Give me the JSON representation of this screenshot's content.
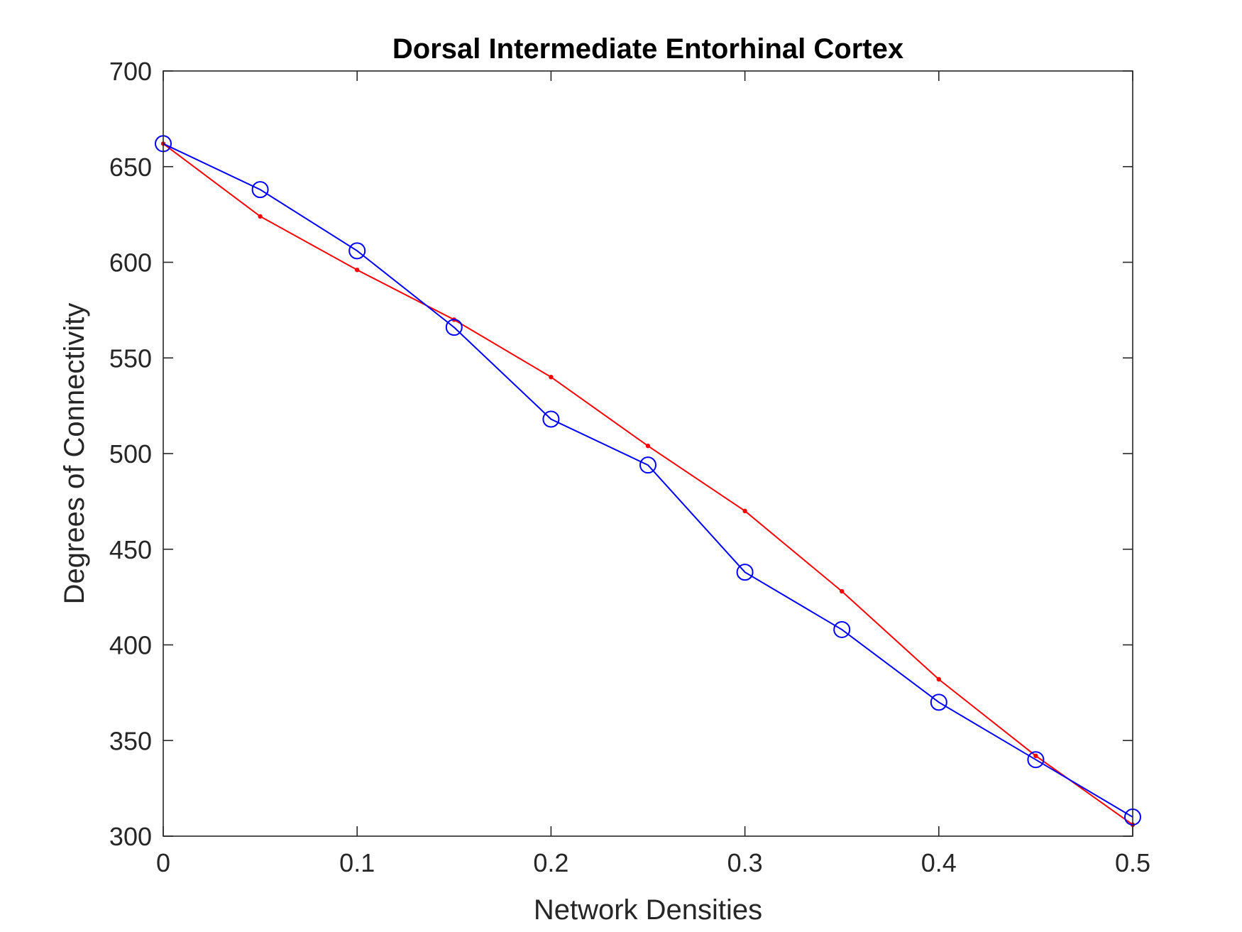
{
  "chart_data": {
    "type": "line",
    "title": "Dorsal Intermediate Entorhinal Cortex",
    "xlabel": "Network Densities",
    "ylabel": "Degrees of Connectivity",
    "xlim": [
      0,
      0.5
    ],
    "ylim": [
      300,
      700
    ],
    "xticks": [
      0,
      0.1,
      0.2,
      0.3,
      0.4,
      0.5
    ],
    "xtick_labels": [
      "0",
      "0.1",
      "0.2",
      "0.3",
      "0.4",
      "0.5"
    ],
    "yticks": [
      300,
      350,
      400,
      450,
      500,
      550,
      600,
      650,
      700
    ],
    "ytick_labels": [
      "300",
      "350",
      "400",
      "450",
      "500",
      "550",
      "600",
      "650",
      "700"
    ],
    "grid": false,
    "x": [
      0,
      0.05,
      0.1,
      0.15,
      0.2,
      0.25,
      0.3,
      0.35,
      0.4,
      0.45,
      0.5
    ],
    "series": [
      {
        "color": "#ff0000",
        "marker": "dot",
        "values": [
          662,
          624,
          596,
          570,
          540,
          504,
          470,
          428,
          382,
          342,
          306
        ]
      },
      {
        "color": "#0000ff",
        "marker": "circle",
        "values": [
          662,
          638,
          606,
          566,
          518,
          494,
          438,
          408,
          370,
          340,
          310
        ]
      }
    ]
  }
}
